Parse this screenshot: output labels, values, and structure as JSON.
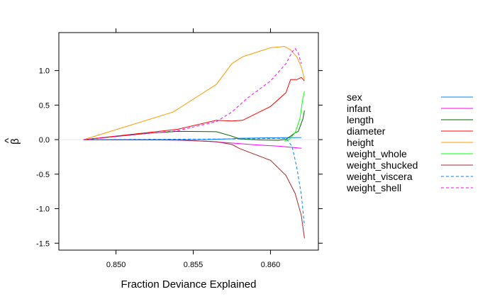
{
  "chart_data": {
    "type": "line",
    "title": "",
    "xlabel": "Fraction Deviance Explained",
    "ylabel": "β̂",
    "ylabel_base": "β",
    "ylabel_accent": "^",
    "xlim": [
      0.8463,
      0.8631
    ],
    "ylim": [
      -1.6,
      1.55
    ],
    "x_ticks": [
      0.85,
      0.855,
      0.86
    ],
    "x_tick_labels": [
      "0.850",
      "0.855",
      "0.860"
    ],
    "y_ticks": [
      -1.5,
      -1.0,
      -0.5,
      0.0,
      0.5,
      1.0
    ],
    "y_tick_labels": [
      "-1.5",
      "-1.0",
      "-0.5",
      "0.0",
      "0.5",
      "1.0"
    ],
    "legend_position": "right",
    "zero_line": true,
    "series": [
      {
        "name": "sex",
        "color": "#0080ff",
        "dash": false,
        "points": [
          [
            0.8479,
            0.0
          ],
          [
            0.854,
            0.0
          ],
          [
            0.856,
            0.002
          ],
          [
            0.8575,
            0.012
          ],
          [
            0.858,
            0.02
          ],
          [
            0.8595,
            0.025
          ],
          [
            0.861,
            0.028
          ],
          [
            0.862,
            0.03
          ]
        ]
      },
      {
        "name": "infant",
        "color": "#ff00ff",
        "dash": false,
        "points": [
          [
            0.8479,
            0.0
          ],
          [
            0.852,
            -0.003
          ],
          [
            0.854,
            -0.008
          ],
          [
            0.856,
            -0.025
          ],
          [
            0.8575,
            -0.05
          ],
          [
            0.859,
            -0.075
          ],
          [
            0.8605,
            -0.095
          ],
          [
            0.862,
            -0.125
          ]
        ]
      },
      {
        "name": "length",
        "color": "#006400",
        "dash": false,
        "points": [
          [
            0.8479,
            0.0
          ],
          [
            0.852,
            0.09
          ],
          [
            0.854,
            0.12
          ],
          [
            0.8565,
            0.115
          ],
          [
            0.8575,
            0.05
          ],
          [
            0.858,
            0.01
          ],
          [
            0.8595,
            -0.005
          ],
          [
            0.8605,
            -0.01
          ],
          [
            0.861,
            0.005
          ],
          [
            0.8613,
            0.05
          ],
          [
            0.8616,
            0.1
          ],
          [
            0.8618,
            0.12
          ],
          [
            0.8621,
            0.3
          ],
          [
            0.8622,
            0.42
          ]
        ]
      },
      {
        "name": "diameter",
        "color": "#ff0000",
        "dash": false,
        "points": [
          [
            0.8479,
            0.0
          ],
          [
            0.852,
            0.1
          ],
          [
            0.854,
            0.15
          ],
          [
            0.8565,
            0.28
          ],
          [
            0.8575,
            0.27
          ],
          [
            0.8582,
            0.28
          ],
          [
            0.86,
            0.48
          ],
          [
            0.861,
            0.68
          ],
          [
            0.8613,
            0.87
          ],
          [
            0.8617,
            0.87
          ],
          [
            0.862,
            0.9
          ],
          [
            0.8622,
            0.85
          ]
        ]
      },
      {
        "name": "height",
        "color": "#ff9900",
        "dash": false,
        "points": [
          [
            0.8479,
            0.0
          ],
          [
            0.8537,
            0.4
          ],
          [
            0.8565,
            0.8
          ],
          [
            0.8575,
            1.1
          ],
          [
            0.8582,
            1.2
          ],
          [
            0.86,
            1.33
          ],
          [
            0.8609,
            1.35
          ],
          [
            0.8613,
            1.3
          ],
          [
            0.8617,
            1.2
          ],
          [
            0.862,
            1.05
          ],
          [
            0.8622,
            0.87
          ]
        ]
      },
      {
        "name": "weight_whole",
        "color": "#00ff00",
        "dash": false,
        "points": [
          [
            0.8609,
            -0.02
          ],
          [
            0.8612,
            0.0
          ],
          [
            0.8616,
            0.1
          ],
          [
            0.8619,
            0.3
          ],
          [
            0.862,
            0.45
          ],
          [
            0.8621,
            0.6
          ],
          [
            0.8622,
            0.7
          ]
        ]
      },
      {
        "name": "weight_shucked",
        "color": "#a52a2a",
        "dash": false,
        "points": [
          [
            0.8479,
            0.0
          ],
          [
            0.854,
            -0.005
          ],
          [
            0.8565,
            -0.03
          ],
          [
            0.8575,
            -0.07
          ],
          [
            0.858,
            -0.13
          ],
          [
            0.86,
            -0.3
          ],
          [
            0.861,
            -0.52
          ],
          [
            0.8616,
            -0.78
          ],
          [
            0.862,
            -1.1
          ],
          [
            0.8622,
            -1.43
          ]
        ]
      },
      {
        "name": "weight_viscera",
        "color": "#0080ff",
        "dash": true,
        "points": [
          [
            0.8479,
            0.0
          ],
          [
            0.858,
            0.01
          ],
          [
            0.861,
            0.02
          ],
          [
            0.8614,
            -0.1
          ],
          [
            0.8617,
            -0.4
          ],
          [
            0.862,
            -0.8
          ],
          [
            0.8622,
            -1.25
          ]
        ]
      },
      {
        "name": "weight_shell",
        "color": "#ff00ff",
        "dash": true,
        "points": [
          [
            0.8479,
            0.0
          ],
          [
            0.854,
            0.13
          ],
          [
            0.8565,
            0.26
          ],
          [
            0.8575,
            0.4
          ],
          [
            0.8585,
            0.6
          ],
          [
            0.86,
            0.85
          ],
          [
            0.861,
            1.1
          ],
          [
            0.8614,
            1.27
          ],
          [
            0.8616,
            1.32
          ],
          [
            0.8618,
            1.25
          ],
          [
            0.862,
            1.1
          ]
        ]
      }
    ]
  }
}
